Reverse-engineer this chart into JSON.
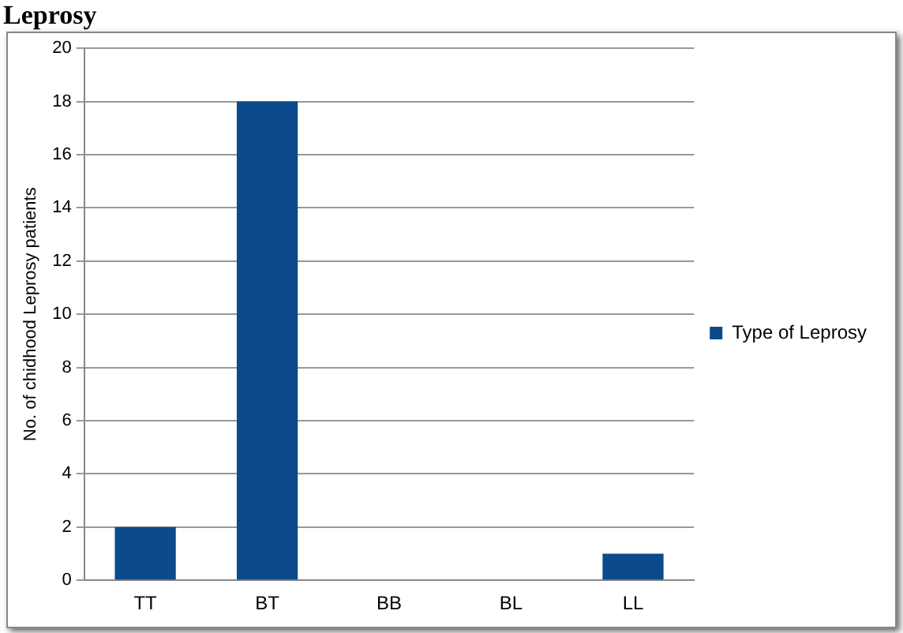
{
  "chart_data": {
    "type": "bar",
    "title": "Leprosy",
    "ylabel": "No. of chidhood Leprosy patients",
    "categories": [
      "TT",
      "BT",
      "BB",
      "BL",
      "LL"
    ],
    "series": [
      {
        "name": "Type of Leprosy",
        "color": "#0b4a8b",
        "values": [
          2,
          18,
          0,
          0,
          1
        ]
      }
    ],
    "ylim": [
      0,
      20
    ],
    "yticks": [
      0,
      2,
      4,
      6,
      8,
      10,
      12,
      14,
      16,
      18,
      20
    ],
    "grid": "y",
    "legend": "right"
  }
}
